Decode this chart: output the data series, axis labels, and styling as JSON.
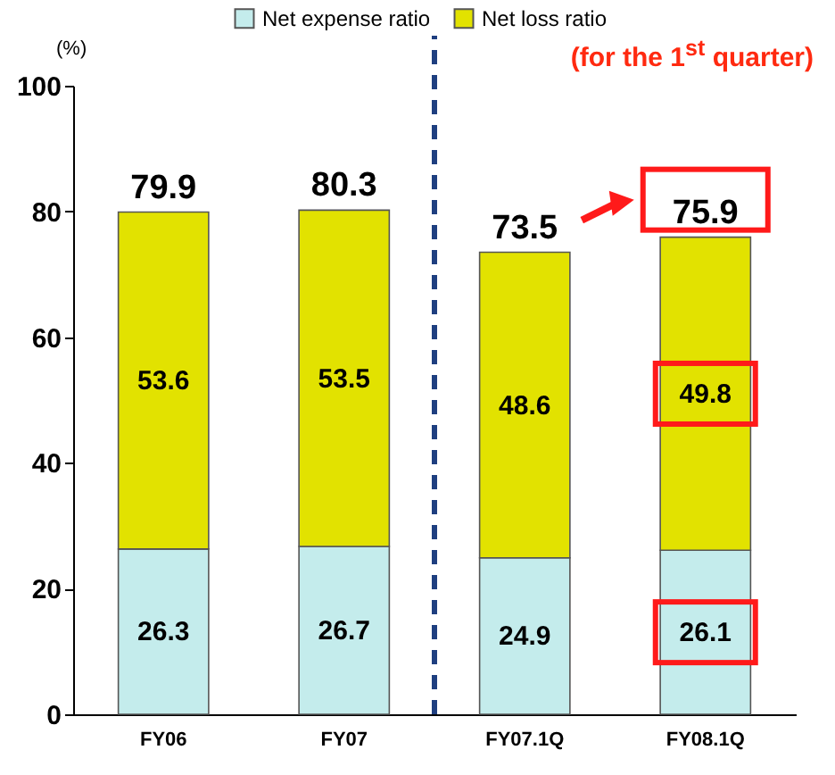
{
  "chart_data": {
    "type": "bar",
    "stacked": true,
    "categories": [
      "FY06",
      "FY07",
      "FY07.1Q",
      "FY08.1Q"
    ],
    "series": [
      {
        "name": "Net expense ratio",
        "color": "#c4ecec",
        "values": [
          26.3,
          26.7,
          24.9,
          26.1
        ]
      },
      {
        "name": "Net loss ratio",
        "color": "#e2e200",
        "values": [
          53.6,
          53.5,
          48.6,
          49.8
        ]
      }
    ],
    "totals": [
      "79.9",
      "80.3",
      "73.5",
      "75.9"
    ],
    "data_labels": true,
    "ylabel": "(%)",
    "ylim": [
      0,
      100
    ],
    "yticks": [
      0,
      20,
      40,
      60,
      80,
      100
    ],
    "grid": false,
    "legend": "top",
    "ref_lines": [
      {
        "axis": "x",
        "value": "FY07.1Q",
        "color": "#1f3f80",
        "line_style": "dashed"
      }
    ],
    "annotations": [
      "(for the 1$^{st}$ quarter)"
    ]
  }
}
